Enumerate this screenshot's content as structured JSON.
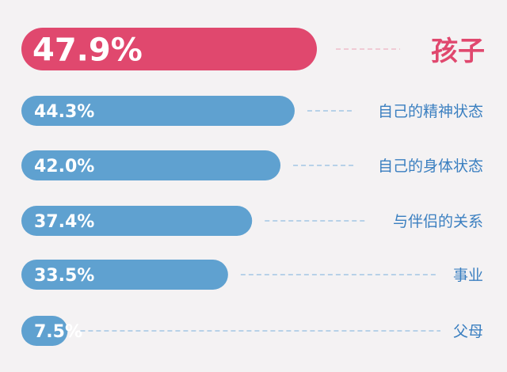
{
  "chart_data": {
    "type": "bar",
    "orientation": "horizontal",
    "categories": [
      "孩子",
      "自己的精神状态",
      "自己的身体状态",
      "与伴侣的关系",
      "事业",
      "父母"
    ],
    "values": [
      47.9,
      44.3,
      42.0,
      37.4,
      33.5,
      7.5
    ],
    "value_labels": [
      "47.9%",
      "44.3%",
      "42.0%",
      "37.4%",
      "33.5%",
      "7.5%"
    ],
    "highlight_index": 0,
    "colors": {
      "highlight": "#e0486e",
      "bar": "#5fa1d0",
      "highlight_text": "#e0486e",
      "label_text": "#3a7fc0",
      "connector": "#7ab0dd",
      "highlight_connector": "#eca2b5"
    }
  }
}
